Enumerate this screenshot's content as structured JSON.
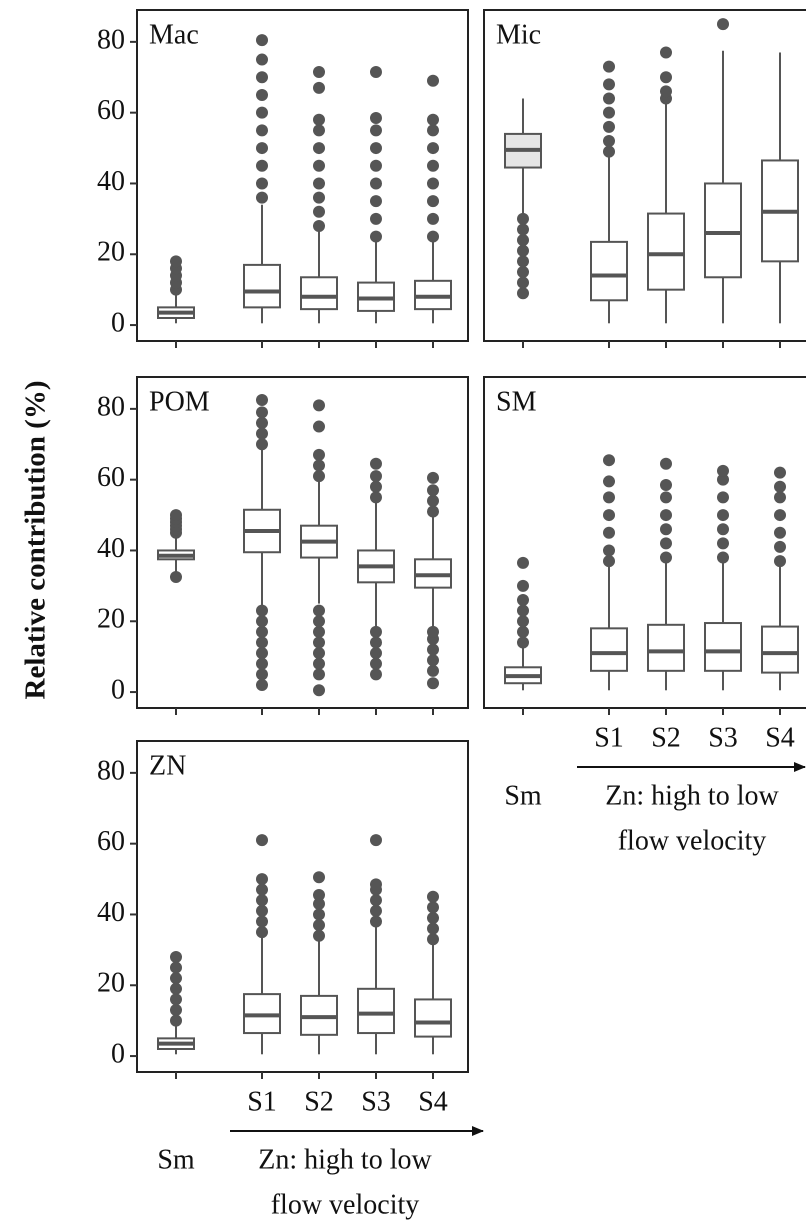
{
  "chart_data": [
    {
      "type": "box",
      "title": "Mac",
      "ylabel": "Relative contribution (%)",
      "ylim": [
        -4.5,
        89
      ],
      "yticks": [
        0,
        20,
        40,
        60,
        80
      ],
      "color": "#555555",
      "fills": [
        "#ffffff",
        "#ffffff",
        "#ffffff",
        "#ffffff",
        "#ffffff"
      ],
      "boxes": [
        {
          "min": 0.5,
          "q1": 2,
          "median": 3.5,
          "q3": 5,
          "max": 8.5,
          "outliers": [
            10,
            12,
            14,
            16,
            18
          ]
        },
        {
          "min": 0.5,
          "q1": 5,
          "median": 9.5,
          "q3": 17,
          "max": 34,
          "outliers": [
            36,
            40,
            45,
            50,
            55,
            60,
            65,
            70,
            75,
            80.5
          ]
        },
        {
          "min": 0.5,
          "q1": 4.5,
          "median": 8,
          "q3": 13.5,
          "max": 27,
          "outliers": [
            28,
            32,
            36,
            40,
            45,
            50,
            55,
            58,
            67,
            71.5
          ]
        },
        {
          "min": 0.5,
          "q1": 4,
          "median": 7.5,
          "q3": 12,
          "max": 23.5,
          "outliers": [
            25,
            30,
            35,
            40,
            45,
            50,
            55,
            58.5,
            71.5
          ]
        },
        {
          "min": 0.5,
          "q1": 4.5,
          "median": 8,
          "q3": 12.5,
          "max": 24,
          "outliers": [
            25,
            30,
            35,
            40,
            45,
            50,
            55,
            58,
            69
          ]
        }
      ]
    },
    {
      "type": "box",
      "title": "Mic",
      "ylim": [
        -4.5,
        89
      ],
      "color": "#555555",
      "fills": [
        "#e5e5e5",
        "#ffffff",
        "#ffffff",
        "#ffffff",
        "#ffffff"
      ],
      "boxes": [
        {
          "min": 31,
          "q1": 44.5,
          "median": 49.5,
          "q3": 54,
          "max": 64,
          "outliers": [
            9,
            12,
            15,
            18,
            21,
            24,
            27,
            30
          ]
        },
        {
          "min": 0.5,
          "q1": 7,
          "median": 14,
          "q3": 23.5,
          "max": 48,
          "outliers": [
            49,
            52,
            56,
            60,
            64,
            68,
            73
          ]
        },
        {
          "min": 0.5,
          "q1": 10,
          "median": 20,
          "q3": 31.5,
          "max": 63,
          "outliers": [
            64,
            66,
            70,
            77
          ]
        },
        {
          "min": 0.5,
          "q1": 13.5,
          "median": 26,
          "q3": 40,
          "max": 77.5,
          "outliers": [
            85
          ]
        },
        {
          "min": 0.5,
          "q1": 18,
          "median": 32,
          "q3": 46.5,
          "max": 77,
          "outliers": []
        }
      ]
    },
    {
      "type": "box",
      "title": "POM",
      "ylim": [
        -4.5,
        89
      ],
      "yticks": [
        0,
        20,
        40,
        60,
        80
      ],
      "color": "#555555",
      "fills": [
        "#ffffff",
        "#ffffff",
        "#ffffff",
        "#ffffff",
        "#ffffff"
      ],
      "boxes": [
        {
          "min": 34,
          "q1": 37.5,
          "median": 38.5,
          "q3": 40,
          "max": 44,
          "outliers": [
            32.5,
            45,
            46,
            47,
            48,
            49,
            50
          ]
        },
        {
          "min": 23.5,
          "q1": 39.5,
          "median": 45.5,
          "q3": 51.5,
          "max": 68.5,
          "outliers": [
            2,
            5,
            8,
            11,
            14,
            17,
            20,
            23,
            70,
            73,
            76,
            79,
            82.5
          ]
        },
        {
          "min": 25,
          "q1": 38,
          "median": 42.5,
          "q3": 47,
          "max": 60,
          "outliers": [
            0.5,
            5,
            8,
            11,
            14,
            17,
            20,
            23,
            61,
            64,
            67,
            75,
            81
          ]
        },
        {
          "min": 18,
          "q1": 31,
          "median": 35.5,
          "q3": 40,
          "max": 53.5,
          "outliers": [
            5,
            8,
            11,
            14,
            17,
            55,
            58,
            61,
            64.5
          ]
        },
        {
          "min": 17.5,
          "q1": 29.5,
          "median": 33,
          "q3": 37.5,
          "max": 49.5,
          "outliers": [
            2.5,
            6,
            9,
            12,
            15,
            17,
            51,
            54,
            57,
            60.5
          ]
        }
      ]
    },
    {
      "type": "box",
      "title": "SM",
      "ylim": [
        -4.5,
        89
      ],
      "color": "#555555",
      "categories": [
        "Sm",
        "S1",
        "S2",
        "S3",
        "S4"
      ],
      "xlabel": [
        "Zn: high to low",
        "flow velocity"
      ],
      "fills": [
        "#ffffff",
        "#ffffff",
        "#ffffff",
        "#ffffff",
        "#ffffff"
      ],
      "boxes": [
        {
          "min": 0.5,
          "q1": 2.5,
          "median": 4.5,
          "q3": 7,
          "max": 13,
          "outliers": [
            14,
            17,
            20,
            23,
            26,
            30,
            36.5
          ]
        },
        {
          "min": 0.5,
          "q1": 6,
          "median": 11,
          "q3": 18,
          "max": 36,
          "outliers": [
            37,
            40,
            45,
            50,
            55,
            59.5,
            65.5
          ]
        },
        {
          "min": 0.5,
          "q1": 6,
          "median": 11.5,
          "q3": 19,
          "max": 37,
          "outliers": [
            38,
            42,
            46,
            50,
            55,
            58.5,
            64.5
          ]
        },
        {
          "min": 0.5,
          "q1": 6,
          "median": 11.5,
          "q3": 19.5,
          "max": 37.5,
          "outliers": [
            38,
            42,
            46,
            50,
            55,
            60,
            62.5
          ]
        },
        {
          "min": 0.5,
          "q1": 5.5,
          "median": 11,
          "q3": 18.5,
          "max": 36.5,
          "outliers": [
            37,
            41,
            45,
            50,
            55,
            58,
            62
          ]
        }
      ]
    },
    {
      "type": "box",
      "title": "ZN",
      "ylim": [
        -4.5,
        89
      ],
      "yticks": [
        0,
        20,
        40,
        60,
        80
      ],
      "color": "#555555",
      "categories": [
        "Sm",
        "S1",
        "S2",
        "S3",
        "S4"
      ],
      "xlabel": [
        "Zn: high to low",
        "flow velocity"
      ],
      "fills": [
        "#ffffff",
        "#ffffff",
        "#ffffff",
        "#ffffff",
        "#ffffff"
      ],
      "boxes": [
        {
          "min": 0.5,
          "q1": 2,
          "median": 3.5,
          "q3": 5,
          "max": 9,
          "outliers": [
            10,
            13,
            16,
            19,
            22,
            25,
            28
          ]
        },
        {
          "min": 0.5,
          "q1": 6.5,
          "median": 11.5,
          "q3": 17.5,
          "max": 34,
          "outliers": [
            35,
            38,
            41,
            44,
            47,
            50,
            61
          ]
        },
        {
          "min": 0.5,
          "q1": 6,
          "median": 11,
          "q3": 17,
          "max": 33,
          "outliers": [
            34,
            37,
            40,
            43,
            45.5,
            50.5
          ]
        },
        {
          "min": 0.5,
          "q1": 6.5,
          "median": 12,
          "q3": 19,
          "max": 37.5,
          "outliers": [
            38,
            41,
            44,
            47,
            48.5,
            61
          ]
        },
        {
          "min": 0.5,
          "q1": 5.5,
          "median": 9.5,
          "q3": 16,
          "max": 32,
          "outliers": [
            33,
            36,
            39,
            42,
            45
          ]
        }
      ]
    }
  ]
}
